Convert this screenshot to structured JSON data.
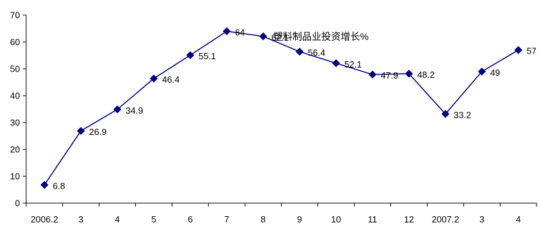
{
  "chart_data": {
    "type": "line",
    "title": "塑料制品业投资增长%",
    "xlabel": "",
    "ylabel": "",
    "categories": [
      "2006.2",
      "3",
      "4",
      "5",
      "6",
      "7",
      "8",
      "9",
      "10",
      "11",
      "12",
      "2007.2",
      "3",
      "4"
    ],
    "series": [
      {
        "values": [
          6.8,
          26.9,
          34.9,
          46.4,
          55.1,
          64,
          62.1,
          56.4,
          52.1,
          47.9,
          48.2,
          33.2,
          49,
          57
        ],
        "labels": [
          "6.8",
          "26.9",
          "34.9",
          "46.4",
          "55.1",
          "64",
          "62.1",
          "56.4",
          "52.1",
          "47.9",
          "48.2",
          "33.2",
          "49",
          "57"
        ],
        "color": "#000080",
        "marker": "diamond"
      }
    ],
    "ylim": [
      0,
      70
    ],
    "yticks": [
      "0",
      "10",
      "20",
      "30",
      "40",
      "50",
      "60",
      "70"
    ],
    "grid": false,
    "legend": "none"
  }
}
